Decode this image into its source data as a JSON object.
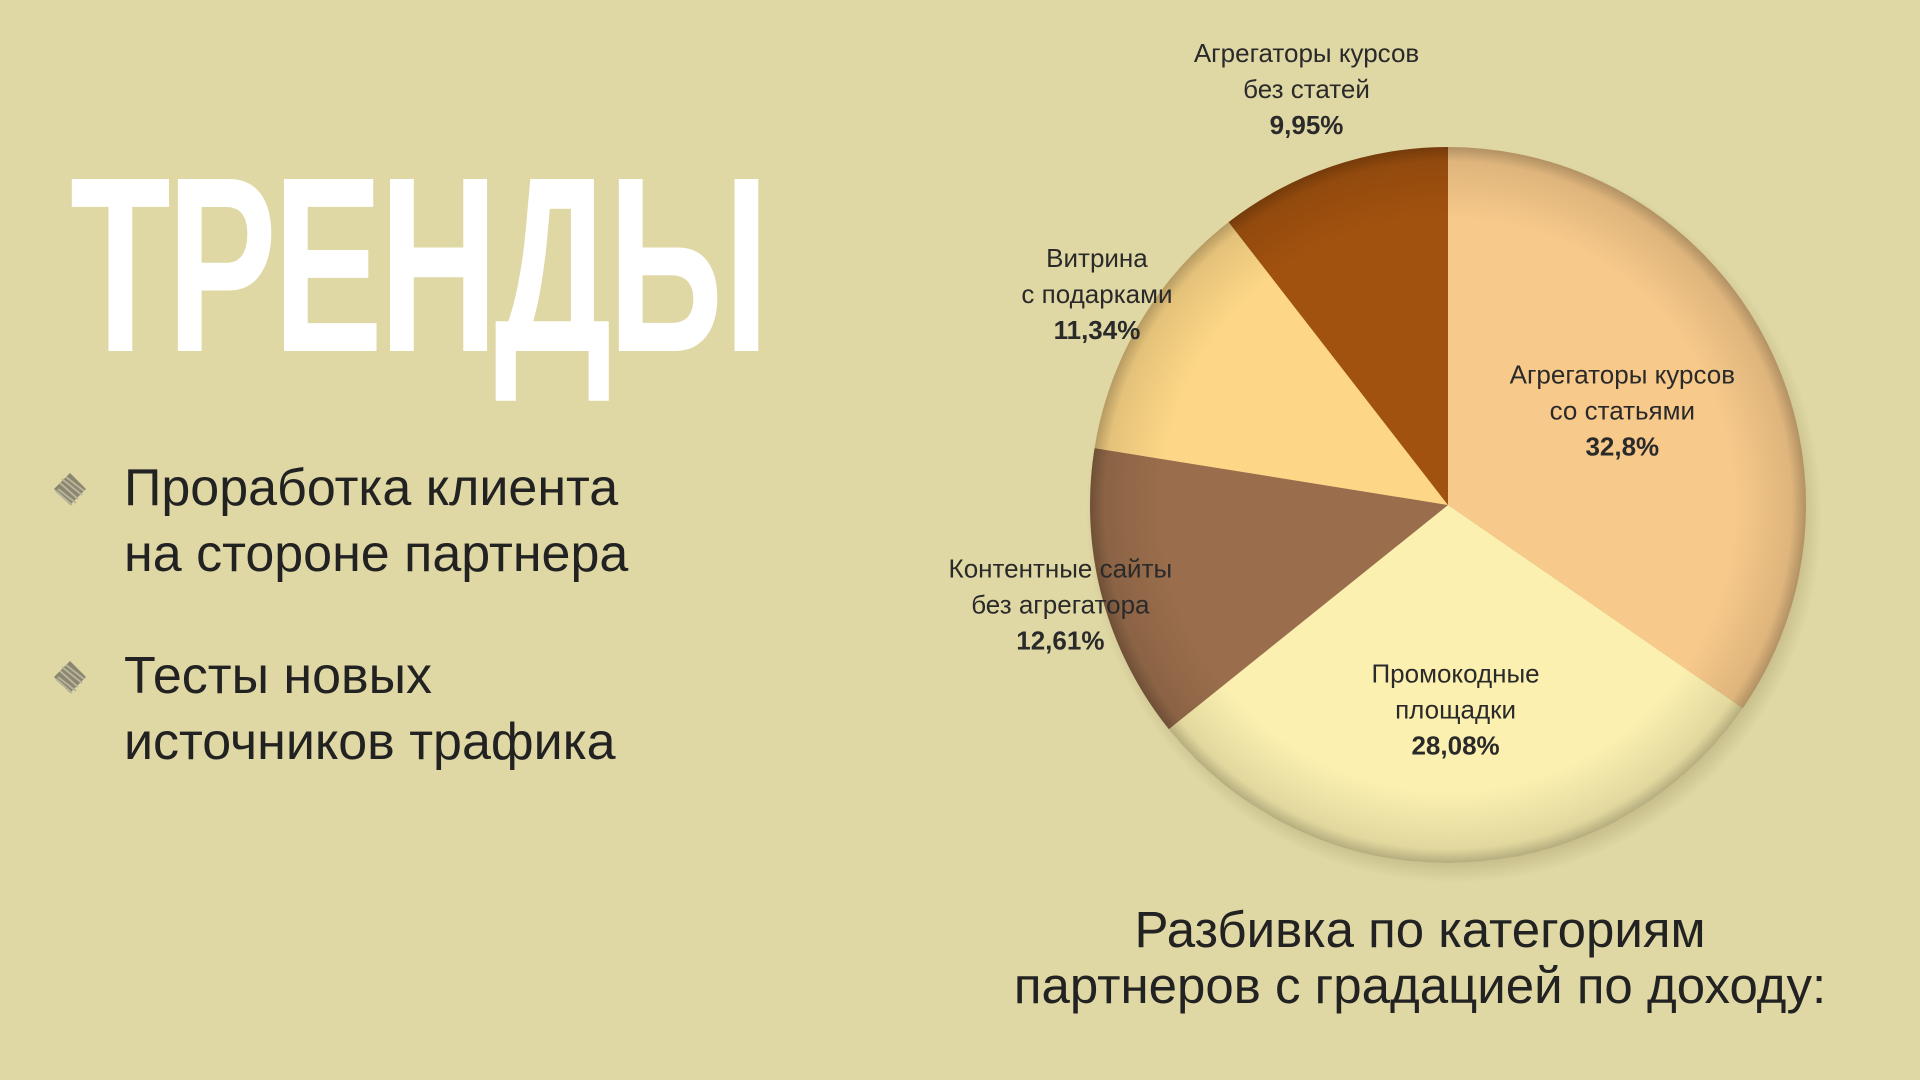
{
  "heading": "ТРЕНДЫ",
  "bullets": [
    {
      "text": "Проработка клиента\nна стороне партнера"
    },
    {
      "text": "Тесты новых\nисточников трафика"
    }
  ],
  "caption": {
    "line1": "Разбивка по категориям",
    "line2": "партнеров с градацией по доходу:"
  },
  "chart_data": {
    "type": "pie",
    "slices": [
      {
        "label_lines": [
          "Агрегаторы курсов",
          "со статьями"
        ],
        "value_label": "32,8%",
        "value": 32.8,
        "color": "#f7c98a"
      },
      {
        "label_lines": [
          "Промокодные",
          "площадки"
        ],
        "value_label": "28,08%",
        "value": 28.08,
        "color": "#fbf0b0"
      },
      {
        "label_lines": [
          "Контентные сайты",
          "без агрегатора"
        ],
        "value_label": "12,61%",
        "value": 12.61,
        "color": "#9a6e4c"
      },
      {
        "label_lines": [
          "Витрина",
          "с подарками"
        ],
        "value_label": "11,34%",
        "value": 11.34,
        "color": "#fdd787"
      },
      {
        "label_lines": [
          "Агрегаторы курсов",
          "без статей"
        ],
        "value_label": "9,95%",
        "value": 9.95,
        "color": "#a2520f"
      }
    ],
    "start_angle_deg": 0,
    "direction": "clockwise"
  }
}
